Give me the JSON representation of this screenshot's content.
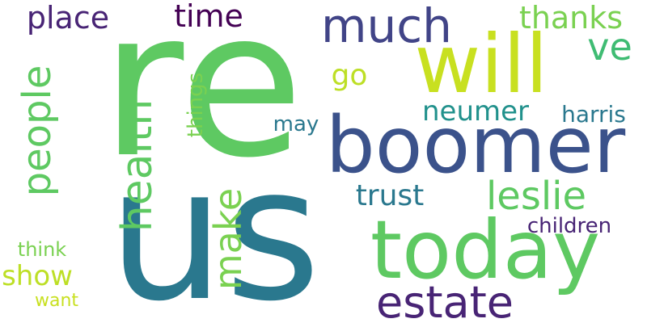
{
  "words": [
    {
      "text": "re",
      "color": "#5ec962",
      "vertical": false
    },
    {
      "text": "us",
      "color": "#2a788e",
      "vertical": false
    },
    {
      "text": "boomer",
      "color": "#3b528b",
      "vertical": false
    },
    {
      "text": "will",
      "color": "#c8e020",
      "vertical": false
    },
    {
      "text": "today",
      "color": "#5ec962",
      "vertical": false
    },
    {
      "text": "much",
      "color": "#414487",
      "vertical": false
    },
    {
      "text": "estate",
      "color": "#482475",
      "vertical": false
    },
    {
      "text": "leslie",
      "color": "#5ec962",
      "vertical": false
    },
    {
      "text": "health",
      "color": "#5ec962",
      "vertical": true
    },
    {
      "text": "people",
      "color": "#5ec962",
      "vertical": true
    },
    {
      "text": "make",
      "color": "#7ad151",
      "vertical": true
    },
    {
      "text": "ve",
      "color": "#3fbc73",
      "vertical": false
    },
    {
      "text": "place",
      "color": "#482475",
      "vertical": false
    },
    {
      "text": "time",
      "color": "#440154",
      "vertical": false
    },
    {
      "text": "thanks",
      "color": "#7ad151",
      "vertical": false
    },
    {
      "text": "neumer",
      "color": "#21918c",
      "vertical": false
    },
    {
      "text": "trust",
      "color": "#2a788e",
      "vertical": false
    },
    {
      "text": "show",
      "color": "#bddf26",
      "vertical": false
    },
    {
      "text": "go",
      "color": "#bddf26",
      "vertical": false
    },
    {
      "text": "harris",
      "color": "#2a788e",
      "vertical": false
    },
    {
      "text": "children",
      "color": "#482475",
      "vertical": false
    },
    {
      "text": "may",
      "color": "#2a788e",
      "vertical": false
    },
    {
      "text": "things",
      "color": "#7ad151",
      "vertical": true
    },
    {
      "text": "think",
      "color": "#7ad151",
      "vertical": false
    },
    {
      "text": "want",
      "color": "#c8e020",
      "vertical": false
    }
  ]
}
